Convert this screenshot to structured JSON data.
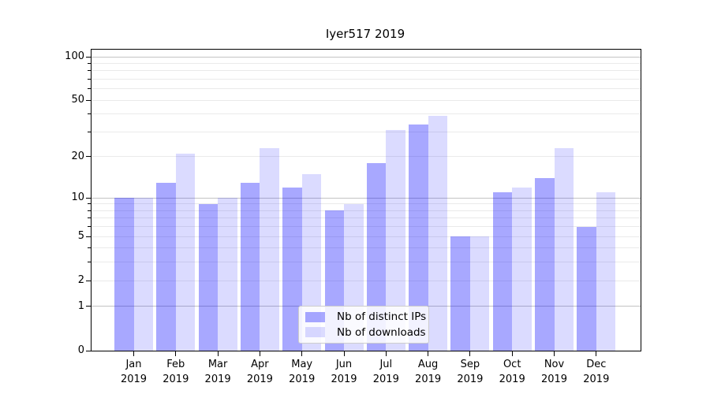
{
  "title": "Iyer517 2019",
  "chart_data": {
    "type": "bar",
    "title": "Iyer517 2019",
    "categories": [
      "Jan",
      "Feb",
      "Mar",
      "Apr",
      "May",
      "Jun",
      "Jul",
      "Aug",
      "Sep",
      "Oct",
      "Nov",
      "Dec"
    ],
    "year_label": "2019",
    "series": [
      {
        "name": "Nb of distinct IPs",
        "color": "rgba(0,0,255,0.34)",
        "values": [
          10,
          13,
          9,
          13,
          12,
          8,
          18,
          34,
          5,
          11,
          14,
          6
        ]
      },
      {
        "name": "Nb of downloads",
        "color": "rgba(0,0,255,0.14)",
        "values": [
          10,
          21,
          10,
          23,
          15,
          9,
          31,
          39,
          5,
          12,
          23,
          11
        ]
      }
    ],
    "yscale": "log1p",
    "ylim": [
      0,
      112
    ],
    "yticks": [
      0,
      1,
      2,
      5,
      10,
      20,
      50,
      100
    ],
    "minor_yticks": [
      3,
      4,
      6,
      7,
      8,
      9,
      30,
      40,
      60,
      70,
      80,
      90
    ],
    "decade_ticks": [
      1,
      10,
      100
    ],
    "grid": true,
    "legend_position": "lower center",
    "colors": {
      "major_grid": "#c3c3c3",
      "minor_grid": "#eaeaea",
      "axis": "#000000",
      "background": "#ffffff"
    }
  }
}
